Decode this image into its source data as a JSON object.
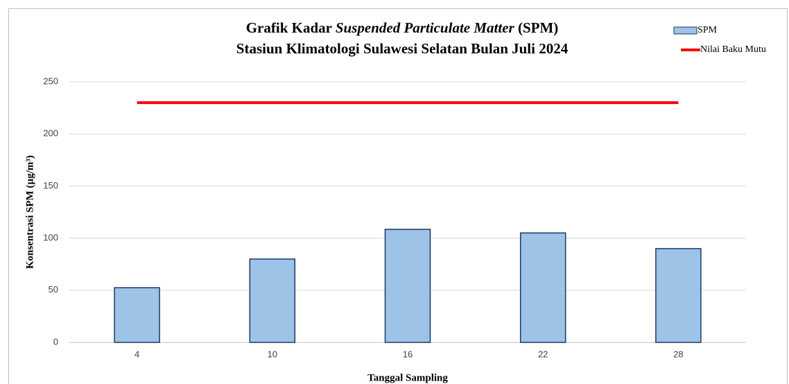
{
  "chart_data": {
    "type": "bar",
    "title": [
      [
        "Grafik Kadar",
        "Suspended Particulate Matter",
        "(SPM)"
      ],
      "Stasiun Klimatologi Sulawesi Selatan Bulan Juli 2024"
    ],
    "x_label": "Tanggal Sampling",
    "y_label": "Konsentrasi SPM (µg/m³)",
    "categories": [
      "4",
      "10",
      "16",
      "22",
      "28"
    ],
    "series": [
      {
        "name": "SPM",
        "type": "bar",
        "color": "#9dc3e6",
        "edge_color": "#1f3864",
        "values": [
          52.5,
          80,
          108.5,
          105,
          90
        ]
      },
      {
        "name": "Nilai Baku Mutu",
        "type": "line",
        "color": "#ff0000",
        "values": [
          230,
          230,
          230,
          230,
          230
        ]
      }
    ],
    "ylim": [
      0,
      250
    ],
    "yticks": [
      0,
      50,
      100,
      150,
      200,
      250
    ],
    "grid": true,
    "legend": "upper right"
  }
}
